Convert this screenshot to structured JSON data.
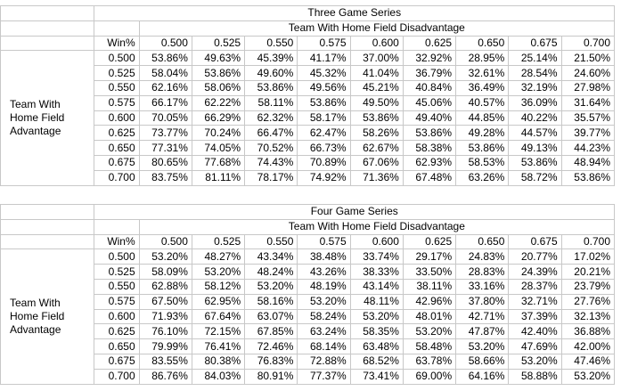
{
  "tables": [
    {
      "title": "Three Game Series",
      "column_group": "Team With Home Field Disadvantage",
      "row_group": "Team With Home Field Advantage",
      "corner_label": "Win%",
      "columns": [
        "0.500",
        "0.525",
        "0.550",
        "0.575",
        "0.600",
        "0.625",
        "0.650",
        "0.675",
        "0.700"
      ],
      "rows": [
        {
          "label": "0.500",
          "cells": [
            "53.86%",
            "49.63%",
            "45.39%",
            "41.17%",
            "37.00%",
            "32.92%",
            "28.95%",
            "25.14%",
            "21.50%"
          ]
        },
        {
          "label": "0.525",
          "cells": [
            "58.04%",
            "53.86%",
            "49.60%",
            "45.32%",
            "41.04%",
            "36.79%",
            "32.61%",
            "28.54%",
            "24.60%"
          ]
        },
        {
          "label": "0.550",
          "cells": [
            "62.16%",
            "58.06%",
            "53.86%",
            "49.56%",
            "45.21%",
            "40.84%",
            "36.49%",
            "32.19%",
            "27.98%"
          ]
        },
        {
          "label": "0.575",
          "cells": [
            "66.17%",
            "62.22%",
            "58.11%",
            "53.86%",
            "49.50%",
            "45.06%",
            "40.57%",
            "36.09%",
            "31.64%"
          ]
        },
        {
          "label": "0.600",
          "cells": [
            "70.05%",
            "66.29%",
            "62.32%",
            "58.17%",
            "53.86%",
            "49.40%",
            "44.85%",
            "40.22%",
            "35.57%"
          ]
        },
        {
          "label": "0.625",
          "cells": [
            "73.77%",
            "70.24%",
            "66.47%",
            "62.47%",
            "58.26%",
            "53.86%",
            "49.28%",
            "44.57%",
            "39.77%"
          ]
        },
        {
          "label": "0.650",
          "cells": [
            "77.31%",
            "74.05%",
            "70.52%",
            "66.73%",
            "62.67%",
            "58.38%",
            "53.86%",
            "49.13%",
            "44.23%"
          ]
        },
        {
          "label": "0.675",
          "cells": [
            "80.65%",
            "77.68%",
            "74.43%",
            "70.89%",
            "67.06%",
            "62.93%",
            "58.53%",
            "53.86%",
            "48.94%"
          ]
        },
        {
          "label": "0.700",
          "cells": [
            "83.75%",
            "81.11%",
            "78.17%",
            "74.92%",
            "71.36%",
            "67.48%",
            "63.26%",
            "58.72%",
            "53.86%"
          ]
        }
      ]
    },
    {
      "title": "Four Game Series",
      "column_group": "Team With Home Field Disadvantage",
      "row_group": "Team With Home Field Advantage",
      "corner_label": "Win%",
      "columns": [
        "0.500",
        "0.525",
        "0.550",
        "0.575",
        "0.600",
        "0.625",
        "0.650",
        "0.675",
        "0.700"
      ],
      "rows": [
        {
          "label": "0.500",
          "cells": [
            "53.20%",
            "48.27%",
            "43.34%",
            "38.48%",
            "33.74%",
            "29.17%",
            "24.83%",
            "20.77%",
            "17.02%"
          ]
        },
        {
          "label": "0.525",
          "cells": [
            "58.09%",
            "53.20%",
            "48.24%",
            "43.26%",
            "38.33%",
            "33.50%",
            "28.83%",
            "24.39%",
            "20.21%"
          ]
        },
        {
          "label": "0.550",
          "cells": [
            "62.88%",
            "58.12%",
            "53.20%",
            "48.19%",
            "43.14%",
            "38.11%",
            "33.16%",
            "28.37%",
            "23.79%"
          ]
        },
        {
          "label": "0.575",
          "cells": [
            "67.50%",
            "62.95%",
            "58.16%",
            "53.20%",
            "48.11%",
            "42.96%",
            "37.80%",
            "32.71%",
            "27.76%"
          ]
        },
        {
          "label": "0.600",
          "cells": [
            "71.93%",
            "67.64%",
            "63.07%",
            "58.24%",
            "53.20%",
            "48.01%",
            "42.71%",
            "37.39%",
            "32.13%"
          ]
        },
        {
          "label": "0.625",
          "cells": [
            "76.10%",
            "72.15%",
            "67.85%",
            "63.24%",
            "58.35%",
            "53.20%",
            "47.87%",
            "42.40%",
            "36.88%"
          ]
        },
        {
          "label": "0.650",
          "cells": [
            "79.99%",
            "76.41%",
            "72.46%",
            "68.14%",
            "63.48%",
            "58.48%",
            "53.20%",
            "47.69%",
            "42.00%"
          ]
        },
        {
          "label": "0.675",
          "cells": [
            "83.55%",
            "80.38%",
            "76.83%",
            "72.88%",
            "68.52%",
            "63.78%",
            "58.66%",
            "53.20%",
            "47.46%"
          ]
        },
        {
          "label": "0.700",
          "cells": [
            "86.76%",
            "84.03%",
            "80.91%",
            "77.37%",
            "73.41%",
            "69.00%",
            "64.16%",
            "58.88%",
            "53.20%"
          ]
        }
      ]
    }
  ]
}
